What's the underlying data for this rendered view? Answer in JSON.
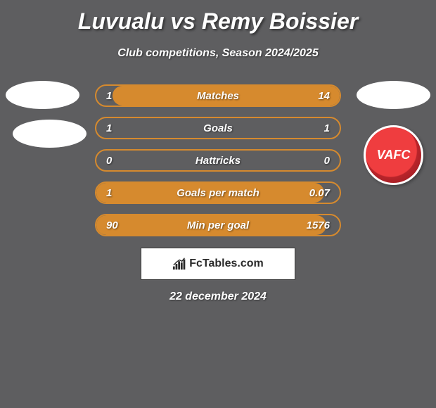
{
  "title": "Luvualu vs Remy Boissier",
  "subtitle": "Club competitions, Season 2024/2025",
  "footer_brand": "FcTables.com",
  "footer_date": "22 december 2024",
  "badge_text": "VAFC",
  "colors": {
    "background": "#5e5e60",
    "bar_border": "#d68a2e",
    "bar_fill": "#d68a2e",
    "text": "#ffffff",
    "badge_primary": "#ef3d3f",
    "badge_dark": "#8f1a20",
    "footer_box_bg": "#ffffff",
    "footer_box_text": "#2a2a2a"
  },
  "typography": {
    "title_fontsize": 32,
    "subtitle_fontsize": 16,
    "stat_fontsize": 15,
    "footer_fontsize": 16,
    "font_style": "italic",
    "font_weight": "bold"
  },
  "stats": [
    {
      "label": "Matches",
      "left_value": "1",
      "right_value": "14",
      "fill_side": "right",
      "fill_percent": 93.3,
      "left_num": 1,
      "right_num": 14
    },
    {
      "label": "Goals",
      "left_value": "1",
      "right_value": "1",
      "fill_side": "none",
      "fill_percent": 0,
      "left_num": 1,
      "right_num": 1
    },
    {
      "label": "Hattricks",
      "left_value": "0",
      "right_value": "0",
      "fill_side": "none",
      "fill_percent": 0,
      "left_num": 0,
      "right_num": 0
    },
    {
      "label": "Goals per match",
      "left_value": "1",
      "right_value": "0.07",
      "fill_side": "left",
      "fill_percent": 93.5,
      "left_num": 1,
      "right_num": 0.07
    },
    {
      "label": "Min per goal",
      "left_value": "90",
      "right_value": "1576",
      "fill_side": "left",
      "fill_percent": 94.6,
      "left_num": 90,
      "right_num": 1576
    }
  ]
}
